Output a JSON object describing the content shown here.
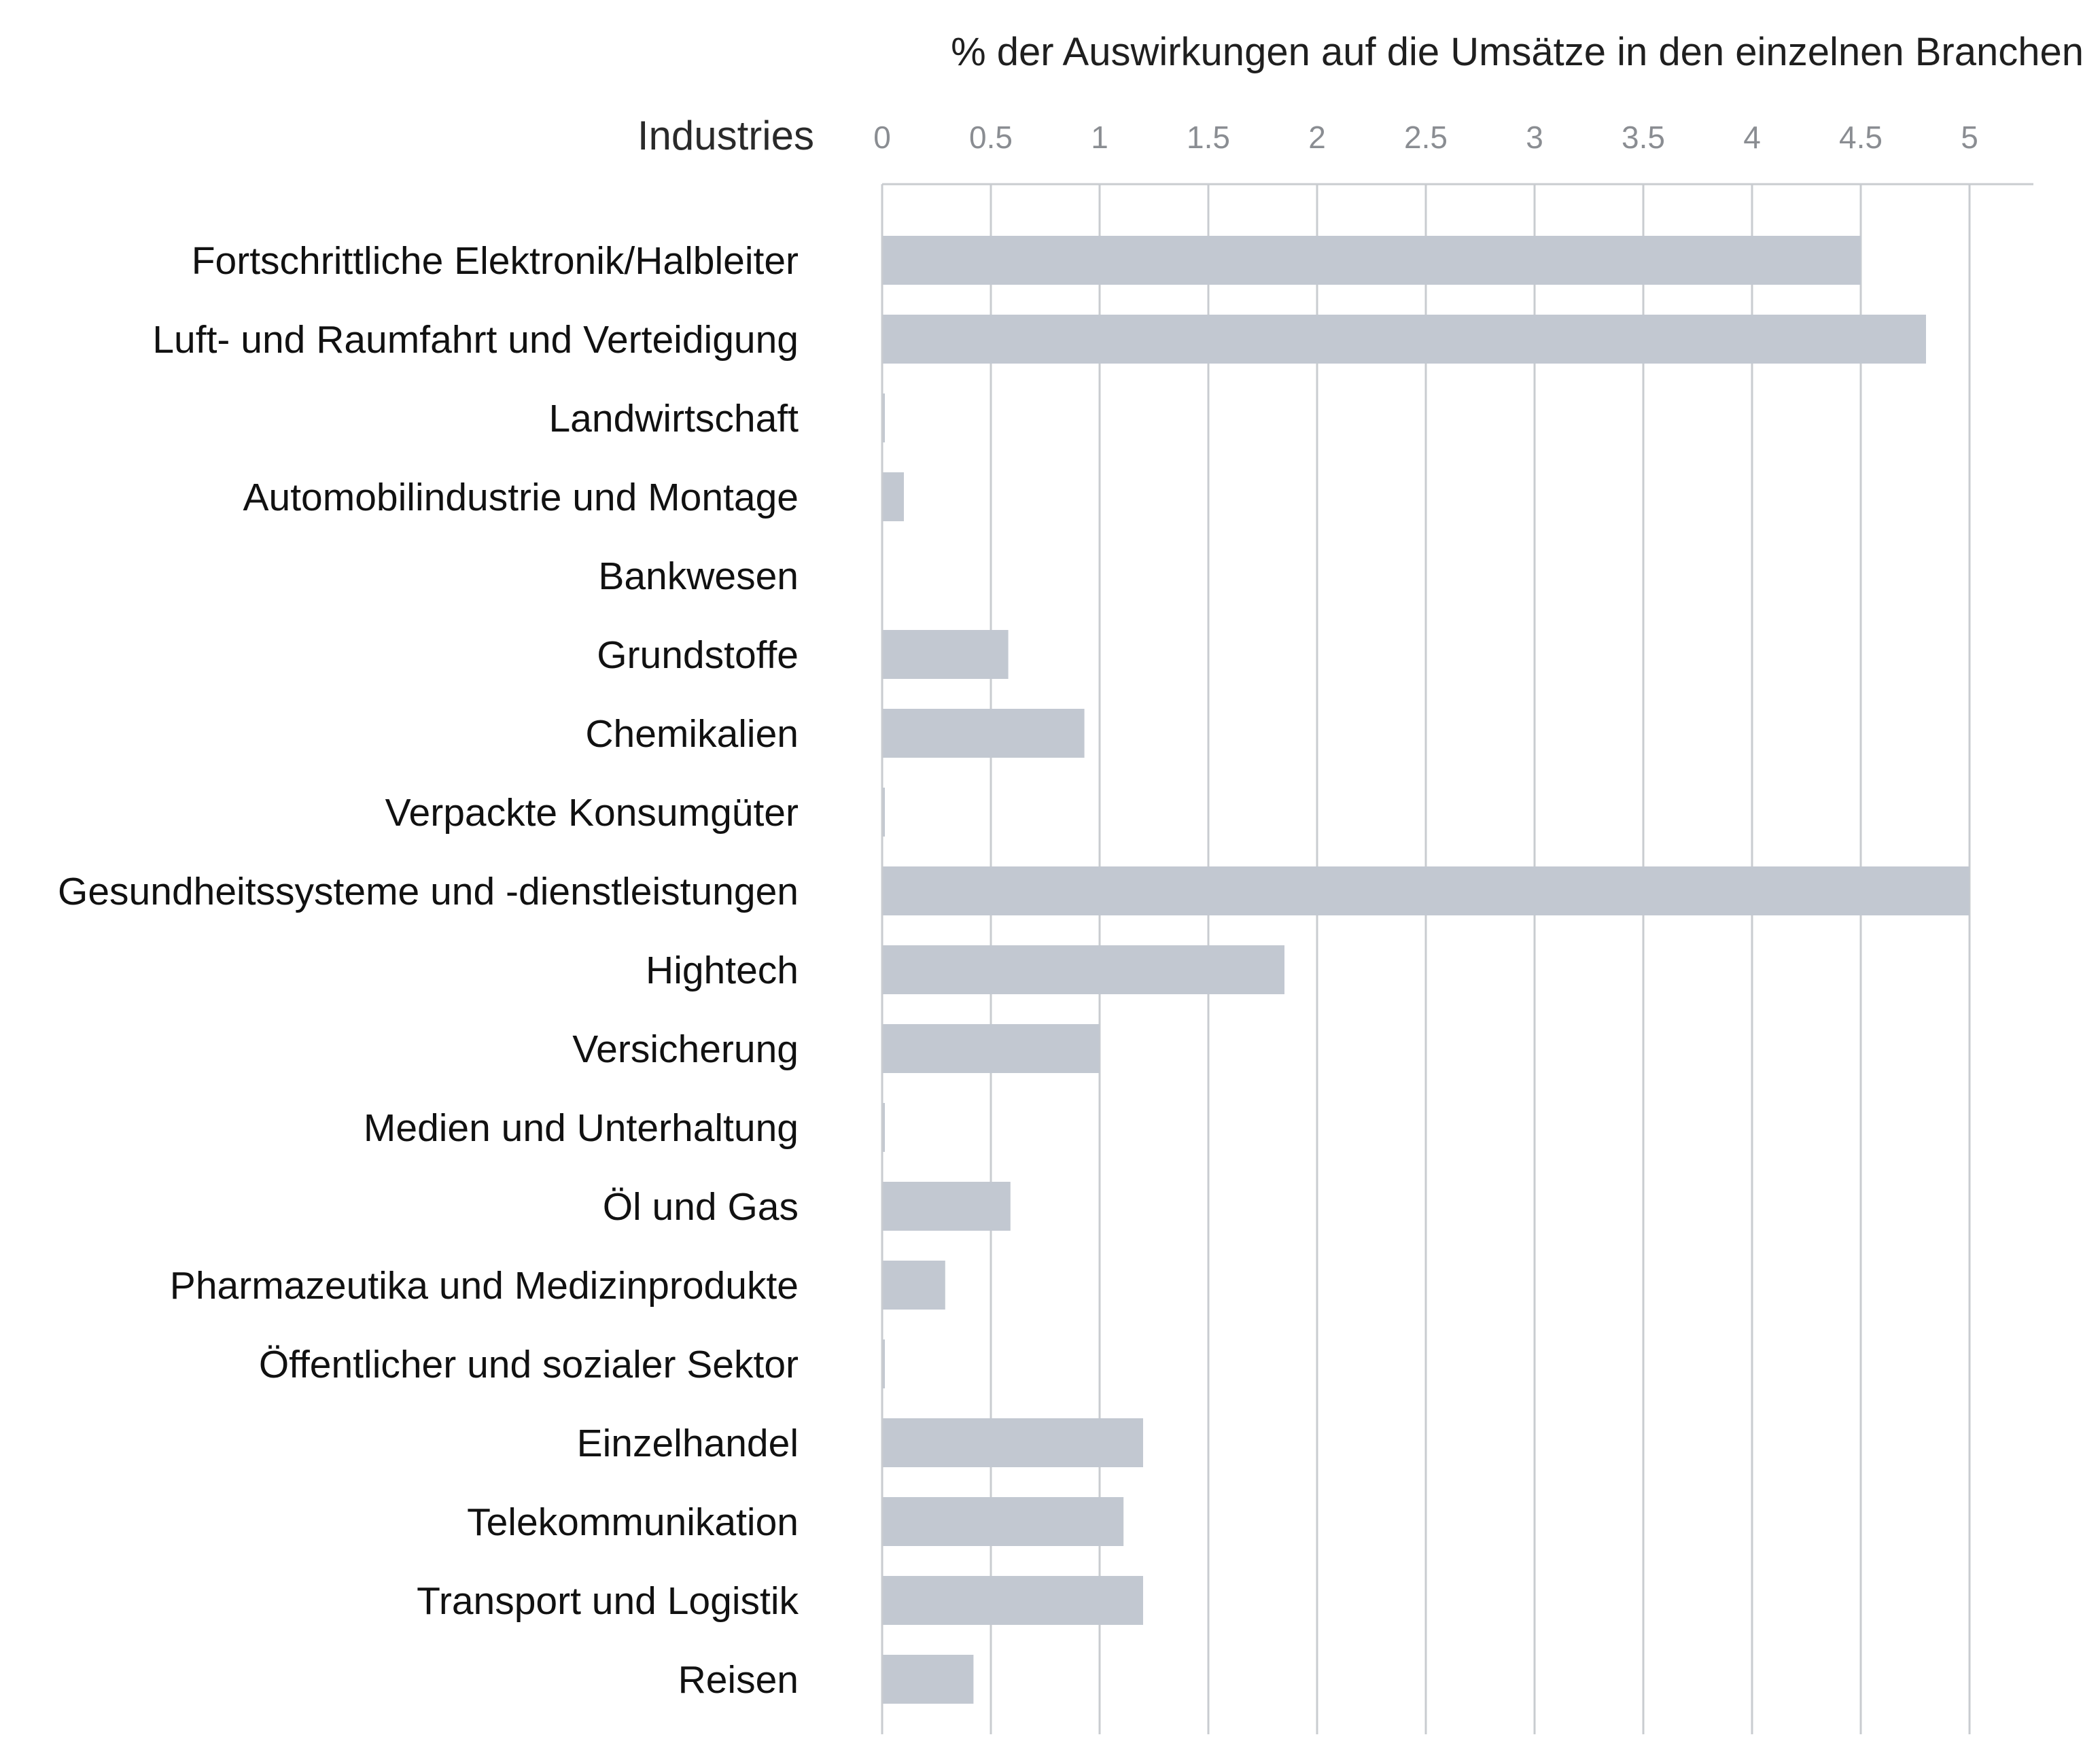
{
  "chart_data": {
    "type": "bar",
    "orientation": "horizontal",
    "title": "% der Auswirkungen auf die Umsätze in den einzelnen Branchen",
    "category_axis_label": "Industries",
    "xlim": [
      0,
      5.3
    ],
    "xticks": [
      "0",
      "0.5",
      "1",
      "1.5",
      "2",
      "2.5",
      "3",
      "3.5",
      "4",
      "4.5",
      "5"
    ],
    "grid": true,
    "legend": "none",
    "bar_color": "#c2c8d1",
    "categories": [
      "Fortschrittliche Elektronik/Halbleiter",
      "Luft- und Raumfahrt und Verteidigung",
      "Landwirtschaft",
      "Automobilindustrie und Montage",
      "Bankwesen",
      "Grundstoffe",
      "Chemikalien",
      "Verpackte Konsumgüter",
      "Gesundheitssysteme und -dienstleistungen",
      "Hightech",
      "Versicherung",
      "Medien und Unterhaltung",
      "Öl und Gas",
      "Pharmazeutika und Medizinprodukte",
      "Öffentlicher und sozialer Sektor",
      "Einzelhandel",
      "Telekommunikation",
      "Transport und Logistik",
      "Reisen"
    ],
    "values": [
      4.5,
      4.8,
      0.01,
      0.1,
      0,
      0.58,
      0.93,
      0.01,
      5.0,
      1.85,
      1.0,
      0.01,
      0.59,
      0.29,
      0.01,
      1.2,
      1.11,
      1.2,
      0.42
    ]
  }
}
